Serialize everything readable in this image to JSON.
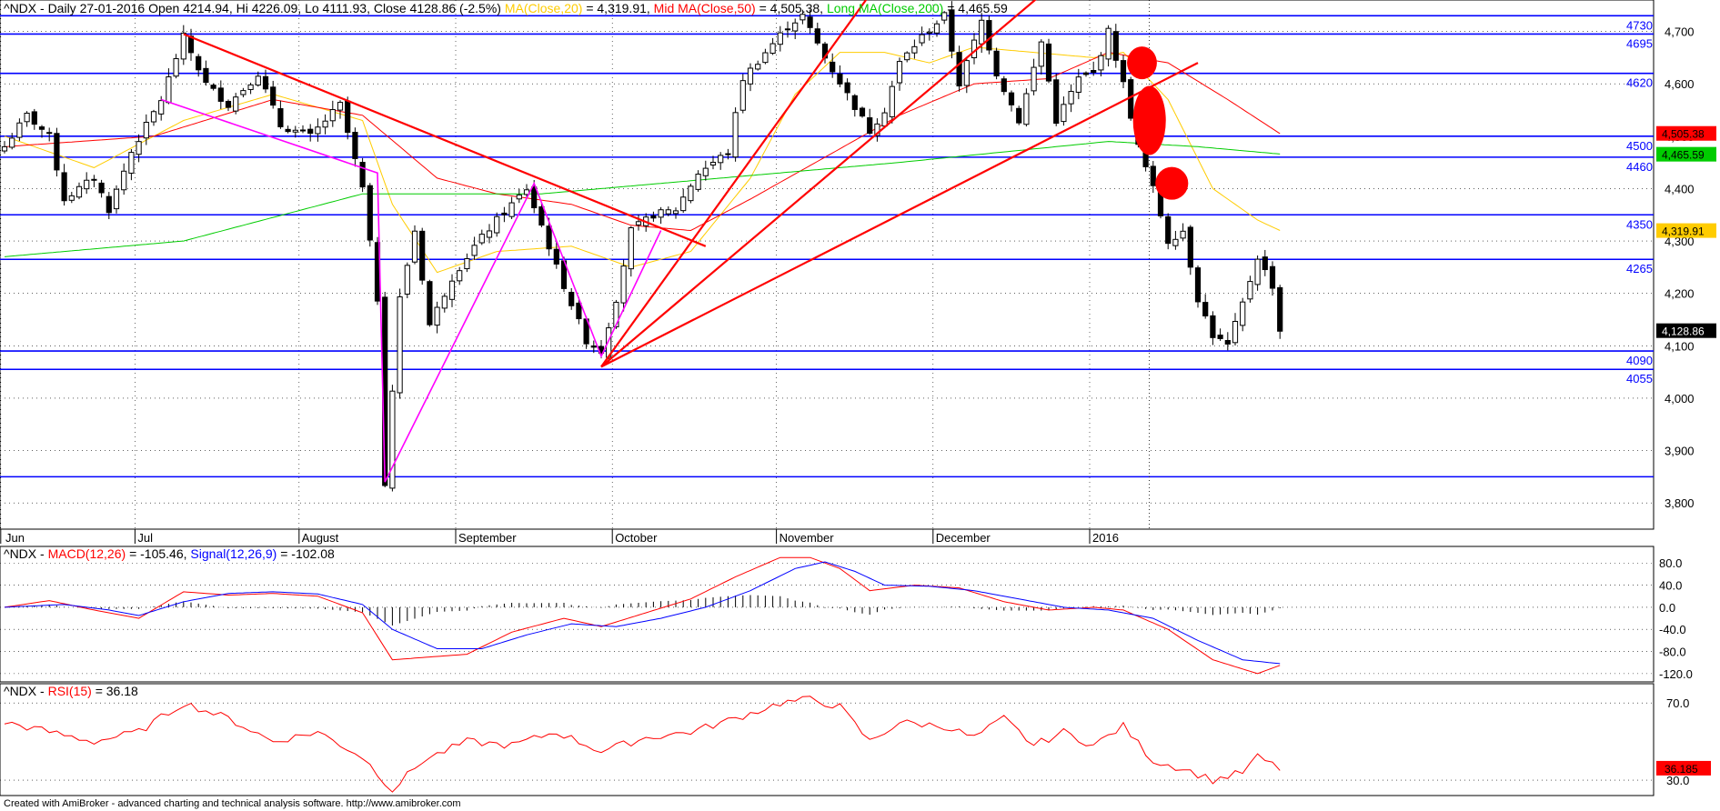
{
  "header": {
    "main": {
      "prefix": "^NDX - Daily 27-01-2016 Open 4214.94, Hi 4226.09, Lo 4111.93, Close 4128.86 (-2.5%)",
      "ma20_label": "MA(Close,20)",
      "ma20_value": "= 4,319.91,",
      "ma50_label": "Mid MA(Close,50)",
      "ma50_value": "= 4,505.38,",
      "ma200_label": "Long MA(Close,200)",
      "ma200_value": "= 4,465.59"
    },
    "macd": {
      "prefix": "^NDX -",
      "macd_label": "MACD(12,26)",
      "macd_value": "= -105.46,",
      "signal_label": "Signal(12,26,9)",
      "signal_value": "= -102.08"
    },
    "rsi": {
      "prefix": "^NDX -",
      "rsi_label": "RSI(15)",
      "rsi_value": "= 36.18"
    }
  },
  "footer": "Created with AmiBroker - advanced charting and technical analysis software. http://www.amibroker.com",
  "colors": {
    "up_fill": "#ffffff",
    "down_fill": "#000000",
    "level_line": "#0000ff",
    "trend_line": "#ff0000",
    "pattern_line": "#ff00ff",
    "ma20": "#ffcc00",
    "ma50": "#ff0000",
    "ma200": "#00cc00",
    "macd": "#ff0000",
    "signal": "#0000ff",
    "rsi": "#ff0000"
  },
  "chart_data": [
    {
      "type": "candlestick",
      "title": "^NDX - Daily 27-01-2016",
      "ylim": [
        3750,
        4760
      ],
      "y_ticks": [
        "3,800",
        "3,900",
        "4,000",
        "4,100",
        "4,200",
        "4,300",
        "4,400",
        "4,500",
        "4,600",
        "4,700"
      ],
      "y_tick_values": [
        3800,
        3900,
        4000,
        4100,
        4200,
        4300,
        4400,
        4500,
        4600,
        4700
      ],
      "months": [
        {
          "label": "Jun",
          "bar": -1
        },
        {
          "label": "Jul",
          "bar": 17
        },
        {
          "label": "August",
          "bar": 39
        },
        {
          "label": "September",
          "bar": 60
        },
        {
          "label": "October",
          "bar": 81
        },
        {
          "label": "November",
          "bar": 103
        },
        {
          "label": "December",
          "bar": 124
        },
        {
          "label": "2016",
          "bar": 145
        }
      ],
      "levels": [
        {
          "label": "4730",
          "value": 4730
        },
        {
          "label": "4695",
          "value": 4695
        },
        {
          "label": "4620",
          "value": 4620
        },
        {
          "label": "4500",
          "value": 4500
        },
        {
          "label": "4460",
          "value": 4460
        },
        {
          "label": "4350",
          "value": 4350
        },
        {
          "label": "4265",
          "value": 4265
        },
        {
          "label": "4090",
          "value": 4090
        },
        {
          "label": "4055",
          "value": 4055
        },
        {
          "label": "",
          "value": 3850
        }
      ],
      "value_tags": [
        {
          "label": "4,505.38",
          "value": 4505.38,
          "bg": "#ff0000",
          "fg": "#000000"
        },
        {
          "label": "4,465.59",
          "value": 4465.59,
          "bg": "#00cc00",
          "fg": "#000000"
        },
        {
          "label": "4,319.91",
          "value": 4319.91,
          "bg": "#ffcc00",
          "fg": "#000000"
        },
        {
          "label": "4,128.86",
          "value": 4128.86,
          "bg": "#000000",
          "fg": "#ffffff"
        }
      ],
      "key_closes": [
        {
          "bar": 0,
          "close": 4480
        },
        {
          "bar": 3,
          "close": 4540
        },
        {
          "bar": 6,
          "close": 4500
        },
        {
          "bar": 8,
          "close": 4380
        },
        {
          "bar": 12,
          "close": 4420
        },
        {
          "bar": 14,
          "close": 4360
        },
        {
          "bar": 17,
          "close": 4470
        },
        {
          "bar": 21,
          "close": 4570
        },
        {
          "bar": 24,
          "close": 4690
        },
        {
          "bar": 27,
          "close": 4600
        },
        {
          "bar": 30,
          "close": 4560
        },
        {
          "bar": 34,
          "close": 4620
        },
        {
          "bar": 37,
          "close": 4520
        },
        {
          "bar": 41,
          "close": 4500
        },
        {
          "bar": 45,
          "close": 4560
        },
        {
          "bar": 48,
          "close": 4400
        },
        {
          "bar": 50,
          "close": 4190
        },
        {
          "bar": 51,
          "close": 3840
        },
        {
          "bar": 53,
          "close": 4190
        },
        {
          "bar": 55,
          "close": 4320
        },
        {
          "bar": 57,
          "close": 4140
        },
        {
          "bar": 60,
          "close": 4230
        },
        {
          "bar": 63,
          "close": 4290
        },
        {
          "bar": 66,
          "close": 4340
        },
        {
          "bar": 70,
          "close": 4400
        },
        {
          "bar": 72,
          "close": 4330
        },
        {
          "bar": 74,
          "close": 4250
        },
        {
          "bar": 78,
          "close": 4110
        },
        {
          "bar": 80,
          "close": 4090
        },
        {
          "bar": 82,
          "close": 4190
        },
        {
          "bar": 84,
          "close": 4320
        },
        {
          "bar": 87,
          "close": 4350
        },
        {
          "bar": 90,
          "close": 4360
        },
        {
          "bar": 93,
          "close": 4430
        },
        {
          "bar": 97,
          "close": 4470
        },
        {
          "bar": 99,
          "close": 4610
        },
        {
          "bar": 102,
          "close": 4660
        },
        {
          "bar": 105,
          "close": 4710
        },
        {
          "bar": 107,
          "close": 4730
        },
        {
          "bar": 110,
          "close": 4650
        },
        {
          "bar": 113,
          "close": 4580
        },
        {
          "bar": 116,
          "close": 4510
        },
        {
          "bar": 118,
          "close": 4550
        },
        {
          "bar": 120,
          "close": 4640
        },
        {
          "bar": 123,
          "close": 4690
        },
        {
          "bar": 126,
          "close": 4730
        },
        {
          "bar": 128,
          "close": 4600
        },
        {
          "bar": 131,
          "close": 4720
        },
        {
          "bar": 133,
          "close": 4620
        },
        {
          "bar": 136,
          "close": 4530
        },
        {
          "bar": 139,
          "close": 4680
        },
        {
          "bar": 141,
          "close": 4530
        },
        {
          "bar": 144,
          "close": 4610
        },
        {
          "bar": 146,
          "close": 4620
        },
        {
          "bar": 148,
          "close": 4700
        },
        {
          "bar": 150,
          "close": 4600
        },
        {
          "bar": 152,
          "close": 4480
        },
        {
          "bar": 154,
          "close": 4400
        },
        {
          "bar": 156,
          "close": 4300
        },
        {
          "bar": 158,
          "close": 4320
        },
        {
          "bar": 160,
          "close": 4190
        },
        {
          "bar": 162,
          "close": 4120
        },
        {
          "bar": 164,
          "close": 4100
        },
        {
          "bar": 166,
          "close": 4180
        },
        {
          "bar": 168,
          "close": 4270
        },
        {
          "bar": 170,
          "close": 4215
        },
        {
          "bar": 171,
          "close": 4129
        }
      ],
      "ma20": [
        [
          0,
          4500
        ],
        [
          12,
          4440
        ],
        [
          24,
          4530
        ],
        [
          36,
          4580
        ],
        [
          48,
          4530
        ],
        [
          52,
          4370
        ],
        [
          58,
          4240
        ],
        [
          66,
          4280
        ],
        [
          76,
          4290
        ],
        [
          84,
          4250
        ],
        [
          92,
          4280
        ],
        [
          100,
          4420
        ],
        [
          106,
          4580
        ],
        [
          112,
          4660
        ],
        [
          118,
          4660
        ],
        [
          124,
          4640
        ],
        [
          130,
          4670
        ],
        [
          138,
          4660
        ],
        [
          146,
          4650
        ],
        [
          150,
          4660
        ],
        [
          156,
          4570
        ],
        [
          162,
          4400
        ],
        [
          168,
          4340
        ],
        [
          171,
          4320
        ]
      ],
      "ma50": [
        [
          0,
          4480
        ],
        [
          20,
          4500
        ],
        [
          36,
          4570
        ],
        [
          48,
          4540
        ],
        [
          58,
          4420
        ],
        [
          66,
          4390
        ],
        [
          76,
          4370
        ],
        [
          84,
          4330
        ],
        [
          92,
          4320
        ],
        [
          100,
          4380
        ],
        [
          110,
          4460
        ],
        [
          120,
          4540
        ],
        [
          130,
          4600
        ],
        [
          140,
          4610
        ],
        [
          148,
          4660
        ],
        [
          156,
          4640
        ],
        [
          164,
          4570
        ],
        [
          171,
          4505
        ]
      ],
      "ma200": [
        [
          0,
          4270
        ],
        [
          24,
          4300
        ],
        [
          48,
          4390
        ],
        [
          72,
          4390
        ],
        [
          96,
          4420
        ],
        [
          120,
          4450
        ],
        [
          148,
          4490
        ],
        [
          160,
          4480
        ],
        [
          171,
          4466
        ]
      ],
      "trend_lines": [
        {
          "color": "red",
          "points": [
            [
              24,
              4695
            ],
            [
              94,
              4290
            ]
          ]
        },
        {
          "color": "red",
          "points": [
            [
              80,
              4060
            ],
            [
              116,
              4770
            ]
          ]
        },
        {
          "color": "red",
          "points": [
            [
              80,
              4060
            ],
            [
              139,
              4770
            ]
          ]
        },
        {
          "color": "red",
          "points": [
            [
              80,
              4060
            ],
            [
              160,
              4640
            ]
          ]
        },
        {
          "color": "magenta",
          "points": [
            [
              21,
              4570
            ],
            [
              50,
              4430
            ],
            [
              51,
              3840
            ],
            [
              71,
              4410
            ],
            [
              80,
              4080
            ],
            [
              88,
              4320
            ]
          ]
        }
      ],
      "markers": [
        {
          "bar": 152.5,
          "value": 4640,
          "rx": 2.0,
          "ry": 18
        },
        {
          "bar": 153.5,
          "value": 4530,
          "rx": 2.2,
          "ry": 38
        },
        {
          "bar": 156.5,
          "value": 4410,
          "rx": 2.2,
          "ry": 18
        }
      ],
      "vline_bar": 153
    },
    {
      "type": "line",
      "title": "MACD(12,26)",
      "ylim": [
        -135,
        110
      ],
      "y_ticks": [
        "-120.0",
        "-80.0",
        "-40.0",
        "0.0",
        "40.0",
        "80.0"
      ],
      "y_tick_values": [
        -120,
        -80,
        -40,
        0,
        40,
        80
      ],
      "series": [
        {
          "name": "MACD(12,26)",
          "values": [
            [
              0,
              0
            ],
            [
              6,
              12
            ],
            [
              12,
              -5
            ],
            [
              18,
              -20
            ],
            [
              24,
              28
            ],
            [
              30,
              22
            ],
            [
              36,
              25
            ],
            [
              42,
              20
            ],
            [
              48,
              -10
            ],
            [
              52,
              -95
            ],
            [
              57,
              -90
            ],
            [
              62,
              -85
            ],
            [
              68,
              -45
            ],
            [
              75,
              -20
            ],
            [
              80,
              -35
            ],
            [
              86,
              -10
            ],
            [
              92,
              15
            ],
            [
              98,
              55
            ],
            [
              104,
              90
            ],
            [
              108,
              90
            ],
            [
              112,
              70
            ],
            [
              116,
              30
            ],
            [
              122,
              40
            ],
            [
              128,
              35
            ],
            [
              134,
              10
            ],
            [
              140,
              -5
            ],
            [
              146,
              0
            ],
            [
              150,
              -5
            ],
            [
              156,
              -40
            ],
            [
              162,
              -95
            ],
            [
              168,
              -120
            ],
            [
              171,
              -105
            ]
          ]
        },
        {
          "name": "Signal(12,26,9)",
          "values": [
            [
              0,
              0
            ],
            [
              8,
              5
            ],
            [
              14,
              -5
            ],
            [
              18,
              -15
            ],
            [
              24,
              10
            ],
            [
              30,
              25
            ],
            [
              36,
              28
            ],
            [
              42,
              24
            ],
            [
              48,
              5
            ],
            [
              52,
              -40
            ],
            [
              58,
              -75
            ],
            [
              64,
              -75
            ],
            [
              70,
              -50
            ],
            [
              76,
              -30
            ],
            [
              82,
              -35
            ],
            [
              88,
              -20
            ],
            [
              94,
              0
            ],
            [
              100,
              30
            ],
            [
              106,
              70
            ],
            [
              110,
              82
            ],
            [
              114,
              65
            ],
            [
              118,
              40
            ],
            [
              124,
              38
            ],
            [
              130,
              30
            ],
            [
              136,
              15
            ],
            [
              142,
              0
            ],
            [
              148,
              -5
            ],
            [
              154,
              -20
            ],
            [
              160,
              -60
            ],
            [
              166,
              -95
            ],
            [
              171,
              -102
            ]
          ]
        }
      ]
    },
    {
      "type": "line",
      "title": "RSI(15)",
      "ylim": [
        22,
        80
      ],
      "y_ticks": [
        "30.0",
        "70.0"
      ],
      "y_tick_values": [
        30,
        70
      ],
      "series": [
        {
          "name": "RSI(15)",
          "values": [
            [
              0,
              60
            ],
            [
              6,
              55
            ],
            [
              12,
              50
            ],
            [
              18,
              55
            ],
            [
              24,
              70
            ],
            [
              30,
              62
            ],
            [
              36,
              50
            ],
            [
              42,
              55
            ],
            [
              48,
              42
            ],
            [
              52,
              25
            ],
            [
              56,
              40
            ],
            [
              62,
              50
            ],
            [
              68,
              48
            ],
            [
              74,
              55
            ],
            [
              80,
              45
            ],
            [
              86,
              52
            ],
            [
              92,
              55
            ],
            [
              98,
              62
            ],
            [
              104,
              70
            ],
            [
              108,
              72
            ],
            [
              112,
              68
            ],
            [
              116,
              50
            ],
            [
              120,
              60
            ],
            [
              126,
              58
            ],
            [
              130,
              52
            ],
            [
              134,
              62
            ],
            [
              138,
              48
            ],
            [
              142,
              55
            ],
            [
              146,
              48
            ],
            [
              150,
              58
            ],
            [
              154,
              40
            ],
            [
              158,
              36
            ],
            [
              162,
              30
            ],
            [
              166,
              34
            ],
            [
              168,
              42
            ],
            [
              171,
              36
            ]
          ]
        }
      ],
      "value_tag": {
        "label": "36.185",
        "value": 36.18
      }
    }
  ]
}
